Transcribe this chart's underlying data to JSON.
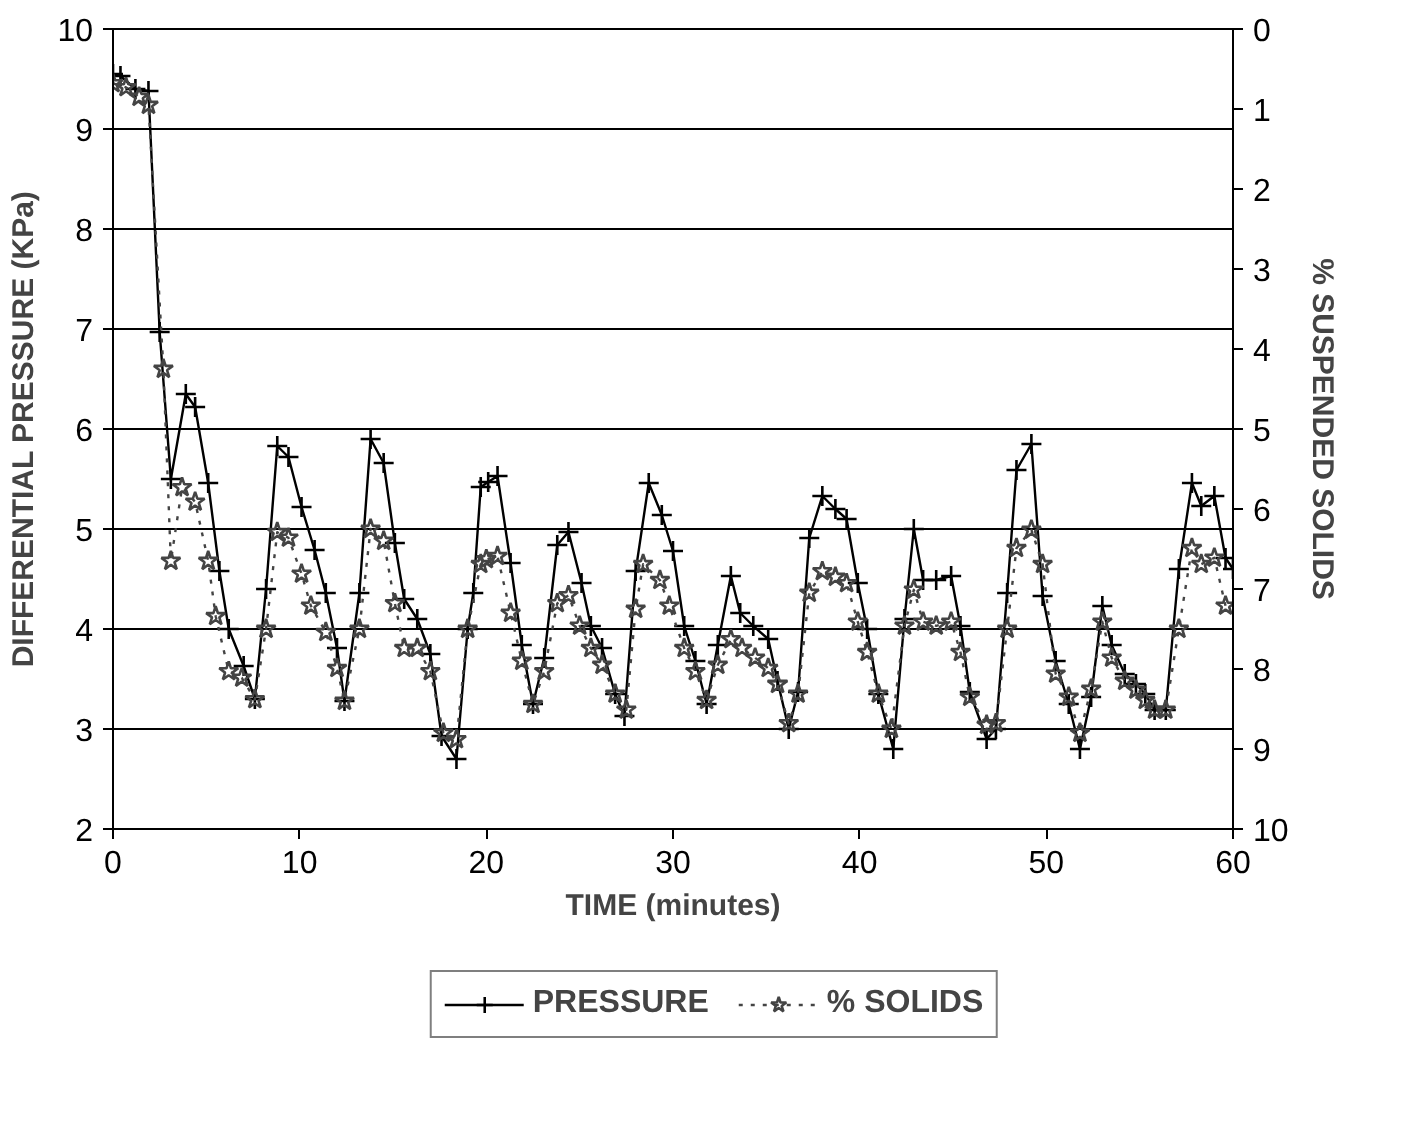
{
  "chart_data": {
    "type": "line",
    "xlabel": "TIME (minutes)",
    "ylabel": "DIFFERENTIAL PRESSURE (KPa)",
    "y2label": "% SUSPENDED SOLIDS",
    "xlim": [
      0,
      60
    ],
    "xticks": [
      0,
      10,
      20,
      30,
      40,
      50,
      60
    ],
    "ylim": [
      2,
      10
    ],
    "yticks": [
      2,
      3,
      4,
      5,
      6,
      7,
      8,
      9,
      10
    ],
    "y2lim": [
      10,
      0
    ],
    "y2ticks": [
      0,
      1,
      2,
      3,
      4,
      5,
      6,
      7,
      8,
      9,
      10
    ],
    "grid": "y",
    "legend": "bottom",
    "series": [
      {
        "name": "PRESSURE",
        "color": "#000000",
        "marker": "cross",
        "line_style": "solid",
        "x": [
          0,
          0.4,
          1.2,
          1.9,
          2.5,
          3.1,
          3.9,
          4.4,
          5.1,
          5.7,
          6.2,
          7.0,
          7.6,
          8.2,
          8.8,
          9.4,
          10.1,
          10.8,
          11.4,
          12.0,
          12.4,
          13.2,
          13.8,
          14.5,
          15.1,
          15.6,
          16.3,
          17.0,
          17.6,
          18.4,
          19.0,
          19.3,
          19.7,
          20.1,
          20.6,
          21.3,
          21.9,
          22.5,
          23.1,
          23.8,
          24.4,
          25.1,
          25.6,
          26.2,
          26.9,
          27.4,
          28.0,
          28.7,
          29.4,
          30.0,
          30.6,
          31.2,
          31.8,
          32.4,
          33.1,
          33.6,
          34.3,
          35.1,
          35.6,
          36.2,
          36.7,
          37.3,
          38.0,
          38.7,
          39.3,
          39.9,
          40.4,
          41.0,
          41.8,
          42.4,
          42.9,
          43.4,
          44.1,
          44.9,
          45.4,
          45.9,
          46.8,
          47.3,
          47.9,
          48.4,
          49.2,
          49.8,
          50.5,
          51.2,
          51.8,
          52.4,
          53.0,
          53.5,
          54.2,
          54.8,
          55.3,
          55.8,
          56.4,
          57.1,
          57.8,
          58.3,
          59.0,
          59.6,
          60
        ],
        "values": [
          9.55,
          9.53,
          9.4,
          9.38,
          6.97,
          5.5,
          6.35,
          6.22,
          5.46,
          4.58,
          4.0,
          3.63,
          3.3,
          4.4,
          5.83,
          5.72,
          5.22,
          4.79,
          4.36,
          3.81,
          3.28,
          4.36,
          5.9,
          5.66,
          4.86,
          4.3,
          4.1,
          3.75,
          2.93,
          2.7,
          4.0,
          4.36,
          5.42,
          5.47,
          5.53,
          4.66,
          3.84,
          3.25,
          3.71,
          4.84,
          4.97,
          4.46,
          4.03,
          3.81,
          3.35,
          3.13,
          4.58,
          5.46,
          5.14,
          4.78,
          4.03,
          3.68,
          3.25,
          3.84,
          4.53,
          4.16,
          4.03,
          3.9,
          3.48,
          3.0,
          3.37,
          4.91,
          5.33,
          5.2,
          5.1,
          4.46,
          4.0,
          3.35,
          2.8,
          4.1,
          5.0,
          4.49,
          4.49,
          4.53,
          4.03,
          3.37,
          2.9,
          3.0,
          4.36,
          5.59,
          5.85,
          4.33,
          3.68,
          3.25,
          2.8,
          3.32,
          4.23,
          3.84,
          3.55,
          3.45,
          3.35,
          3.19,
          3.19,
          4.6,
          5.46,
          5.23,
          5.33,
          4.71,
          4.6
        ]
      },
      {
        "name": "% SOLIDS",
        "color": "#444444",
        "marker": "star",
        "line_style": "dotted",
        "axis": "y2",
        "x": [
          0,
          0.7,
          1.4,
          1.9,
          2.7,
          3.1,
          3.7,
          4.4,
          5.1,
          5.5,
          6.2,
          6.9,
          7.6,
          8.2,
          8.8,
          9.4,
          10.1,
          10.6,
          11.4,
          12.0,
          12.4,
          13.2,
          13.8,
          14.5,
          15.1,
          15.6,
          16.3,
          17.0,
          17.7,
          18.4,
          19.0,
          19.7,
          20.0,
          20.6,
          21.3,
          21.9,
          22.5,
          23.1,
          23.8,
          24.4,
          25.0,
          25.6,
          26.2,
          26.9,
          27.5,
          28.0,
          28.4,
          29.3,
          29.8,
          30.6,
          31.2,
          31.8,
          32.4,
          33.1,
          33.7,
          34.4,
          35.1,
          35.6,
          36.2,
          36.7,
          37.3,
          38.0,
          38.7,
          39.3,
          39.9,
          40.4,
          41.0,
          41.7,
          42.4,
          42.9,
          43.4,
          44.1,
          44.9,
          45.4,
          45.9,
          46.8,
          47.3,
          47.9,
          48.4,
          49.2,
          49.8,
          50.5,
          51.2,
          51.8,
          52.4,
          53.0,
          53.5,
          54.2,
          54.8,
          55.3,
          55.8,
          56.4,
          57.1,
          57.8,
          58.3,
          59.0,
          59.6
        ],
        "values": [
          0.68,
          0.73,
          0.85,
          0.95,
          4.25,
          6.65,
          5.73,
          5.91,
          6.65,
          7.34,
          8.03,
          8.11,
          8.38,
          7.5,
          6.29,
          6.36,
          6.81,
          7.21,
          7.54,
          7.99,
          8.4,
          7.5,
          6.25,
          6.4,
          7.18,
          7.74,
          7.74,
          8.03,
          8.8,
          8.88,
          7.5,
          6.69,
          6.63,
          6.59,
          7.3,
          7.9,
          8.44,
          8.03,
          7.18,
          7.08,
          7.46,
          7.74,
          7.95,
          8.31,
          8.51,
          7.25,
          6.69,
          6.89,
          7.21,
          7.74,
          8.03,
          8.39,
          7.95,
          7.63,
          7.74,
          7.86,
          7.99,
          8.19,
          8.68,
          8.31,
          7.05,
          6.78,
          6.85,
          6.93,
          7.41,
          7.79,
          8.31,
          8.75,
          7.46,
          7.01,
          7.41,
          7.46,
          7.41,
          7.79,
          8.35,
          8.7,
          8.68,
          7.5,
          6.49,
          6.26,
          6.69,
          8.06,
          8.35,
          8.8,
          8.25,
          7.41,
          7.86,
          8.15,
          8.26,
          8.39,
          8.51,
          8.51,
          7.5,
          6.49,
          6.69,
          6.61,
          7.21
        ]
      }
    ]
  }
}
